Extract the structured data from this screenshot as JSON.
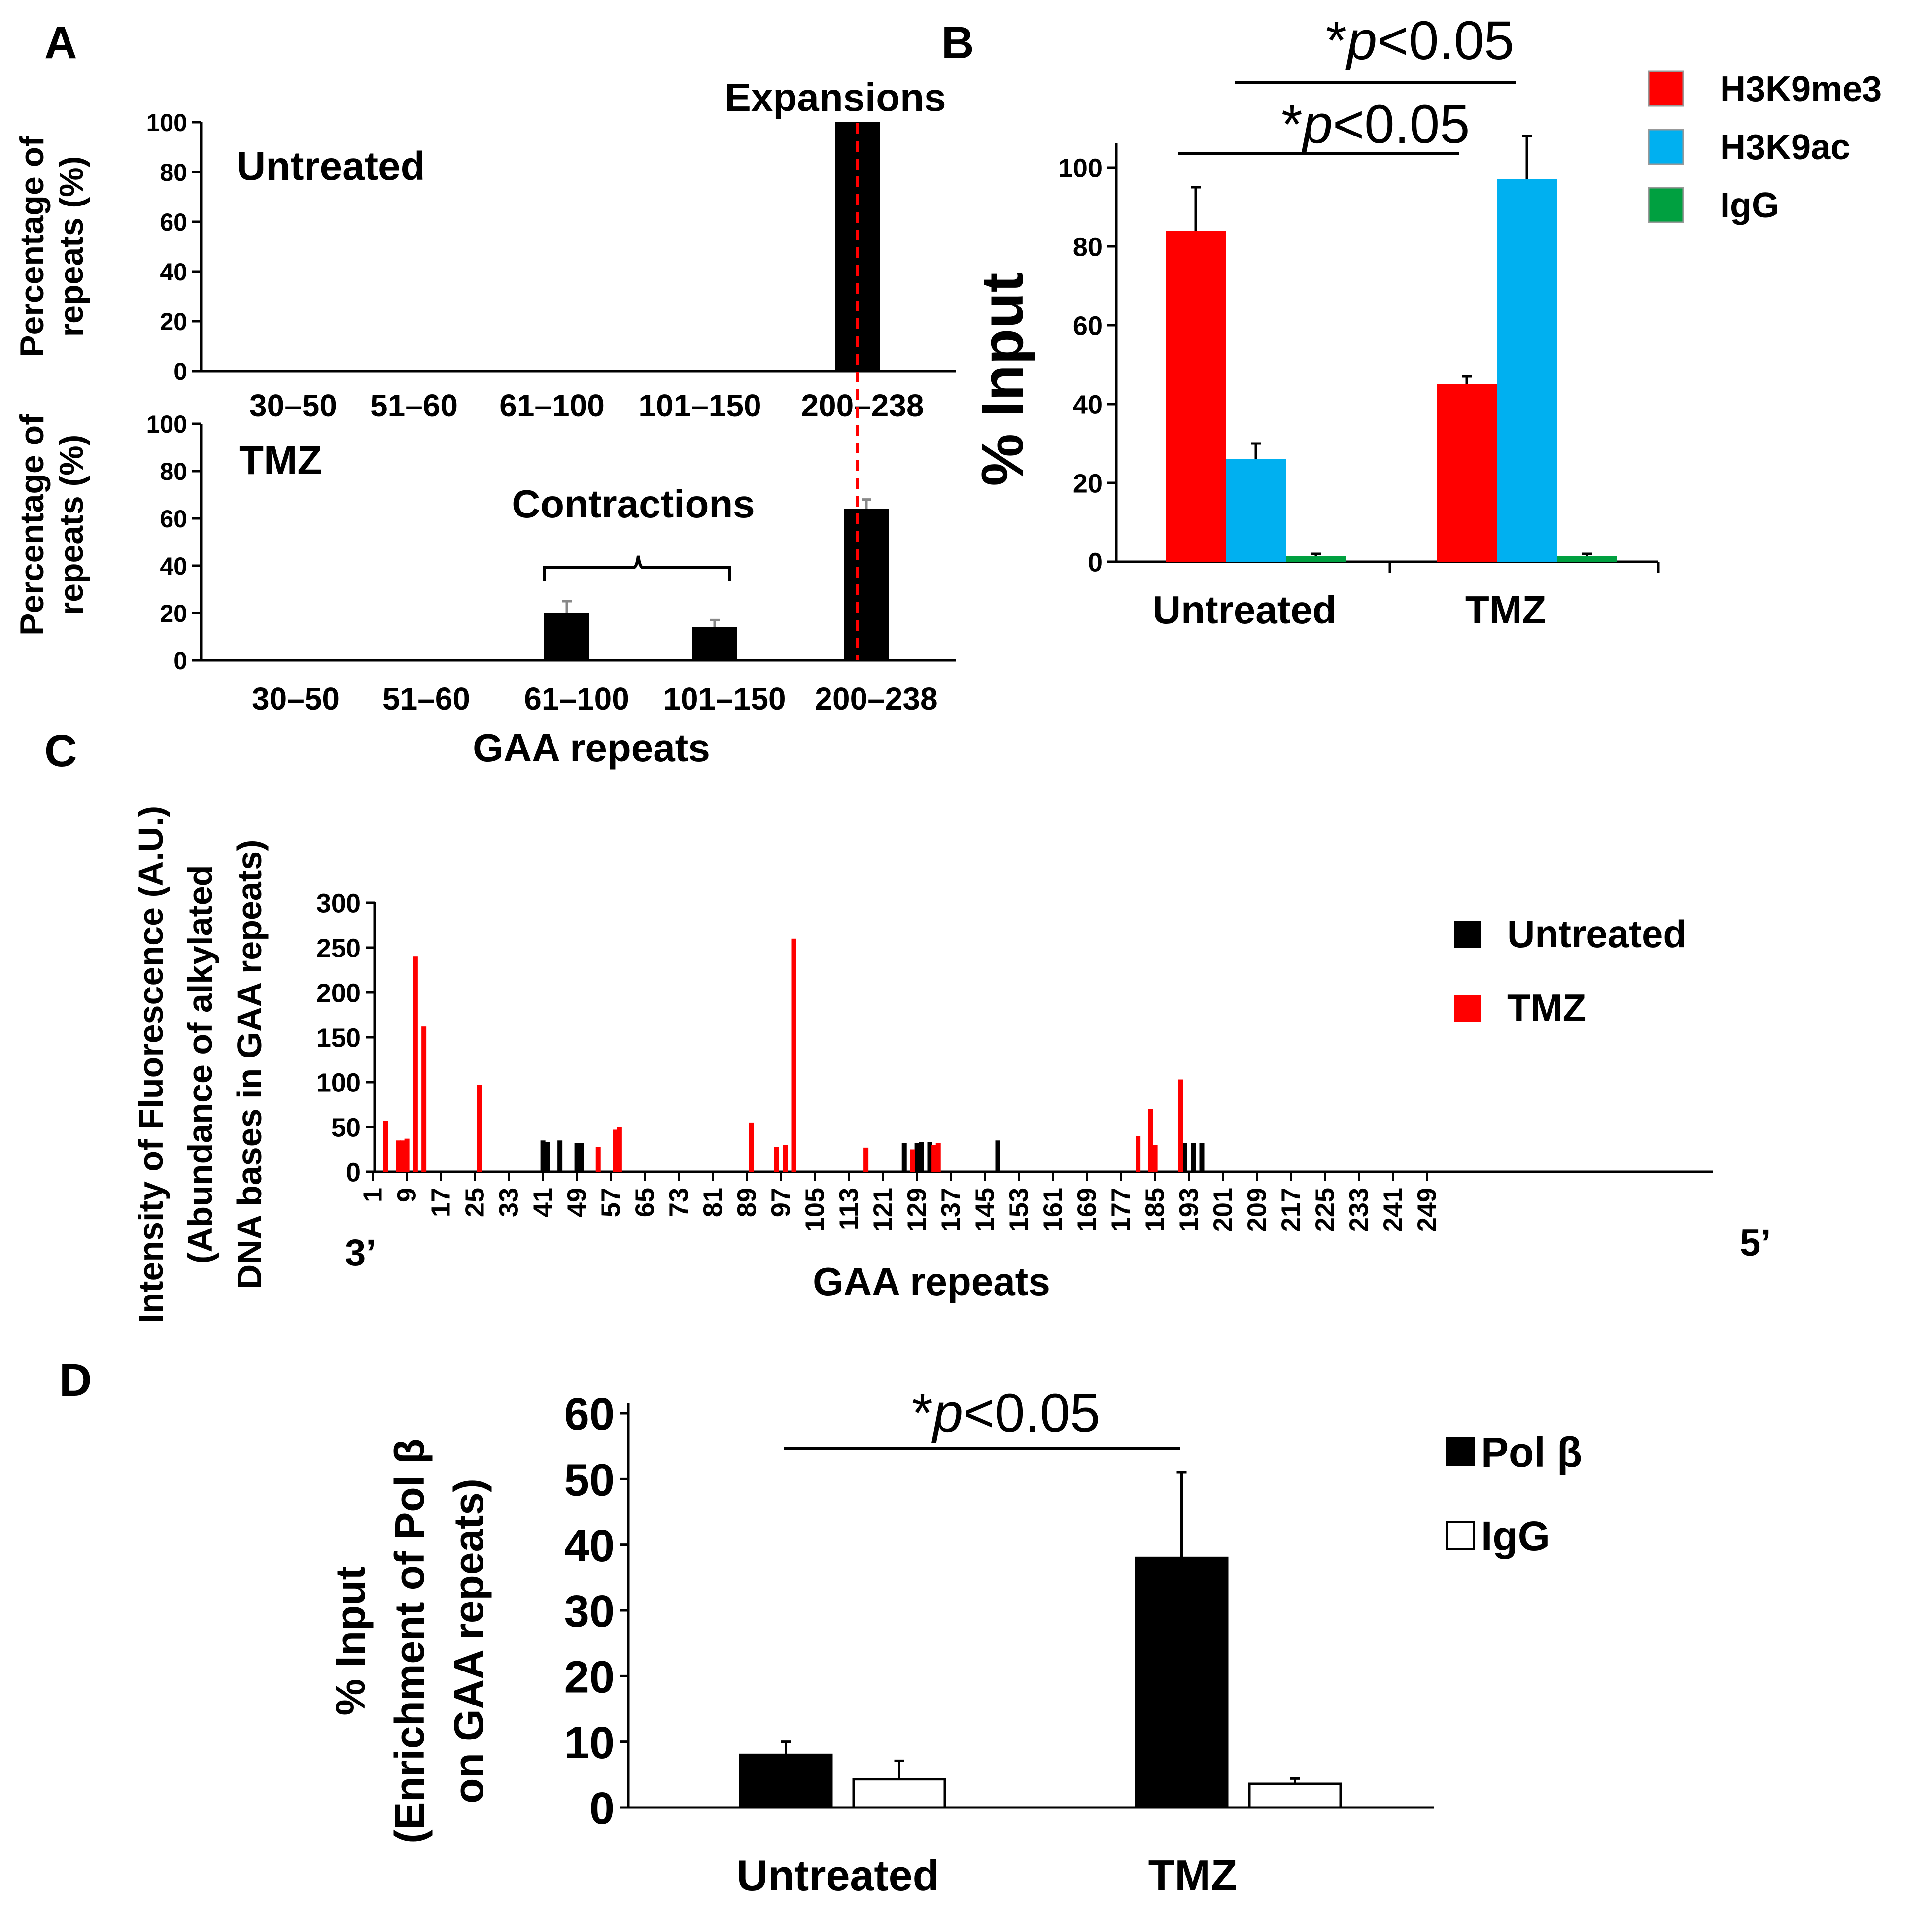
{
  "chart_data": [
    {
      "panel": "A",
      "type": "bar",
      "ylabel_line1": "Percentage of",
      "ylabel_line2": "repeats (%)",
      "ylim": [
        0,
        100
      ],
      "yticks": [
        "0",
        "20",
        "40",
        "60",
        "80",
        "100"
      ],
      "subplots": [
        {
          "label": "Untreated",
          "categories": [
            "30–50",
            "51–60",
            "61–100",
            "101–150",
            "200–238"
          ],
          "values": [
            0,
            0,
            0,
            0,
            100
          ],
          "errors": [
            0,
            0,
            0,
            0,
            0
          ],
          "annotation": "Expansions"
        },
        {
          "label": "TMZ",
          "categories": [
            "30–50",
            "51–60",
            "61–100",
            "101–150",
            "200–238"
          ],
          "values": [
            0,
            0,
            20,
            14,
            64
          ],
          "errors": [
            0,
            0,
            5,
            3,
            4
          ],
          "annotation": "Contractions",
          "xlabel": "GAA repeats"
        }
      ]
    },
    {
      "panel": "B",
      "type": "bar",
      "ylabel": "% Input",
      "ylim": [
        0,
        110
      ],
      "yticks": [
        "0",
        "20",
        "40",
        "60",
        "80",
        "100"
      ],
      "categories": [
        "Untreated",
        "TMZ"
      ],
      "series": [
        {
          "name": "H3K9me3",
          "color": "#ff0000",
          "values": [
            84,
            45
          ],
          "errors": [
            11,
            2
          ]
        },
        {
          "name": "H3K9ac",
          "color": "#00b0f0",
          "values": [
            26,
            97
          ],
          "errors": [
            4,
            11
          ]
        },
        {
          "name": "IgG",
          "color": "#00a040",
          "values": [
            1.5,
            1.5
          ],
          "errors": [
            0.5,
            0.5
          ]
        }
      ],
      "significance": [
        {
          "text_star": "*",
          "text_p": "p",
          "text_rest": "<0.05",
          "between": "H3K9ac Untreated vs H3K9ac TMZ"
        },
        {
          "text_star": "*",
          "text_p": "p",
          "text_rest": "<0.05",
          "between": "H3K9me3 Untreated vs H3K9me3 TMZ"
        }
      ]
    },
    {
      "panel": "C",
      "type": "bar",
      "ylabel_line1": "Intensity of Fluorescence (A.U.)",
      "ylabel_line2": "(Abundance of  alkylated",
      "ylabel_line3": "DNA bases in GAA repeats)",
      "xlabel": "GAA repeats",
      "end_left": "3’",
      "end_right": "5’",
      "ylim": [
        0,
        300
      ],
      "yticks": [
        "0",
        "50",
        "100",
        "150",
        "200",
        "250",
        "300"
      ],
      "xticks": [
        "1",
        "9",
        "17",
        "25",
        "33",
        "41",
        "49",
        "57",
        "65",
        "73",
        "81",
        "89",
        "97",
        "105",
        "113",
        "121",
        "129",
        "137",
        "145",
        "153",
        "161",
        "169",
        "177",
        "185",
        "193",
        "201",
        "209",
        "217",
        "225",
        "233",
        "241",
        "249"
      ],
      "series": [
        {
          "name": "Untreated",
          "color": "#000000",
          "points": [
            [
              41,
              35
            ],
            [
              42,
              33
            ],
            [
              45,
              35
            ],
            [
              49,
              32
            ],
            [
              50,
              32
            ],
            [
              126,
              32
            ],
            [
              129,
              32
            ],
            [
              130,
              33
            ],
            [
              132,
              33
            ],
            [
              148,
              35
            ],
            [
              191,
              32
            ],
            [
              192,
              32
            ],
            [
              194,
              32
            ],
            [
              196,
              32
            ]
          ]
        },
        {
          "name": "TMZ",
          "color": "#ff0000",
          "points": [
            [
              4,
              57
            ],
            [
              7,
              35
            ],
            [
              8,
              35
            ],
            [
              9,
              37
            ],
            [
              11,
              240
            ],
            [
              13,
              162
            ],
            [
              26,
              97
            ],
            [
              54,
              28
            ],
            [
              58,
              47
            ],
            [
              59,
              50
            ],
            [
              90,
              55
            ],
            [
              96,
              28
            ],
            [
              98,
              30
            ],
            [
              100,
              260
            ],
            [
              117,
              27
            ],
            [
              128,
              25
            ],
            [
              133,
              30
            ],
            [
              134,
              32
            ],
            [
              181,
              40
            ],
            [
              184,
              70
            ],
            [
              185,
              30
            ],
            [
              191,
              103
            ]
          ]
        }
      ]
    },
    {
      "panel": "D",
      "type": "bar",
      "ylabel_line1": "% Input",
      "ylabel_line2": "(Enrichment of Pol β",
      "ylabel_line3": "on GAA repeats)",
      "ylim": [
        0,
        60
      ],
      "yticks": [
        "0",
        "10",
        "20",
        "30",
        "40",
        "50",
        "60"
      ],
      "categories": [
        "Untreated",
        "TMZ"
      ],
      "series": [
        {
          "name": "Pol β",
          "color": "#000000",
          "values": [
            8,
            38
          ],
          "errors": [
            2,
            13
          ]
        },
        {
          "name": "IgG",
          "color": "#ffffff",
          "values": [
            4.3,
            3.6
          ],
          "errors": [
            2.8,
            0.8
          ]
        }
      ],
      "significance": [
        {
          "text_star": "*",
          "text_p": "p",
          "text_rest": "<0.05",
          "between": "Pol β Untreated vs Pol β TMZ"
        }
      ]
    }
  ]
}
